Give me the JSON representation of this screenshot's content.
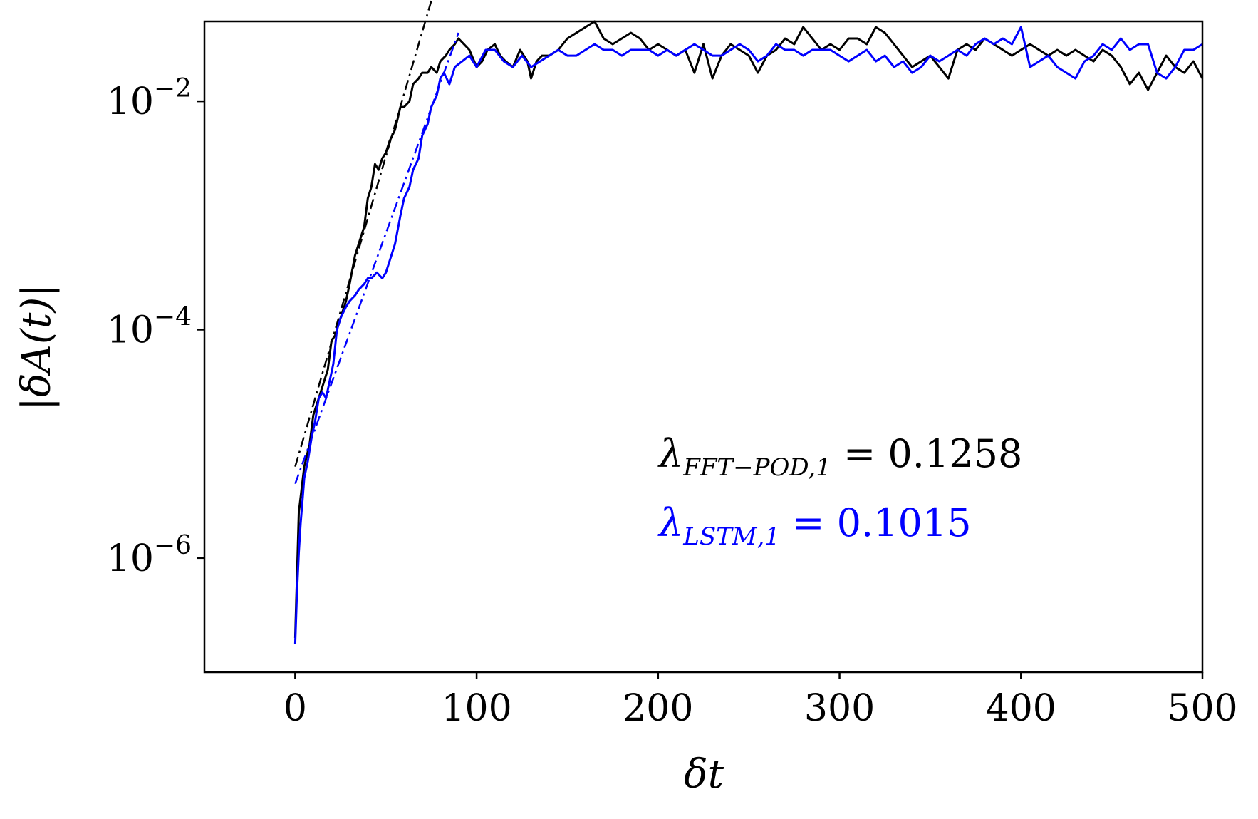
{
  "chart_data": {
    "type": "line",
    "xlabel": "δt",
    "ylabel": "|δA(t)|",
    "xlim": [
      -50,
      500
    ],
    "ylim_log10": [
      -7.0,
      -1.3
    ],
    "yscale": "log",
    "grid": false,
    "xticks": [
      0,
      100,
      200,
      300,
      400,
      500
    ],
    "xtick_labels": [
      "0",
      "100",
      "200",
      "300",
      "400",
      "500"
    ],
    "yticks_log10": [
      -6,
      -4,
      -2
    ],
    "ytick_labels": [
      {
        "base": "10",
        "exp": "−6"
      },
      {
        "base": "10",
        "exp": "−4"
      },
      {
        "base": "10",
        "exp": "−2"
      }
    ],
    "annotations": [
      {
        "sym": "λ",
        "sub": "FFT−POD,1",
        "text": " = 0.1258",
        "color": "#000000"
      },
      {
        "sym": "λ",
        "sub": "LSTM,1",
        "text": " = 0.1015",
        "color": "#0000ff"
      }
    ],
    "series": [
      {
        "color": "#000000",
        "style": "solid",
        "x": [
          0,
          2,
          5,
          8,
          10,
          13,
          15,
          18,
          20,
          22,
          25,
          28,
          30,
          33,
          35,
          38,
          40,
          42,
          44,
          46,
          48,
          50,
          52,
          55,
          58,
          60,
          63,
          65,
          68,
          70,
          73,
          75,
          78,
          80,
          83,
          85,
          88,
          90,
          93,
          96,
          100,
          103,
          106,
          110,
          113,
          116,
          120,
          124,
          128,
          130,
          133,
          136,
          140,
          145,
          150,
          155,
          160,
          165,
          170,
          175,
          180,
          185,
          190,
          195,
          200,
          205,
          210,
          215,
          220,
          225,
          230,
          235,
          240,
          245,
          250,
          255,
          260,
          265,
          270,
          275,
          280,
          285,
          290,
          295,
          300,
          305,
          310,
          315,
          320,
          325,
          330,
          335,
          340,
          345,
          350,
          355,
          360,
          365,
          370,
          375,
          380,
          385,
          390,
          395,
          400,
          405,
          410,
          415,
          420,
          425,
          430,
          435,
          440,
          445,
          450,
          455,
          460,
          465,
          470,
          475,
          480,
          485,
          490,
          495,
          500
        ],
        "log10y": [
          -6.7,
          -5.6,
          -5.2,
          -5.0,
          -4.75,
          -4.6,
          -4.5,
          -4.35,
          -4.1,
          -4.05,
          -3.9,
          -3.75,
          -3.6,
          -3.35,
          -3.25,
          -3.1,
          -2.85,
          -2.75,
          -2.55,
          -2.6,
          -2.5,
          -2.45,
          -2.35,
          -2.25,
          -2.05,
          -2.05,
          -2.0,
          -1.85,
          -1.8,
          -1.75,
          -1.75,
          -1.7,
          -1.75,
          -1.65,
          -1.6,
          -1.55,
          -1.5,
          -1.45,
          -1.5,
          -1.55,
          -1.7,
          -1.65,
          -1.55,
          -1.5,
          -1.6,
          -1.65,
          -1.7,
          -1.55,
          -1.65,
          -1.8,
          -1.65,
          -1.6,
          -1.6,
          -1.55,
          -1.45,
          -1.4,
          -1.35,
          -1.3,
          -1.45,
          -1.5,
          -1.45,
          -1.4,
          -1.45,
          -1.55,
          -1.5,
          -1.55,
          -1.6,
          -1.55,
          -1.75,
          -1.5,
          -1.8,
          -1.6,
          -1.5,
          -1.55,
          -1.6,
          -1.75,
          -1.6,
          -1.55,
          -1.45,
          -1.5,
          -1.35,
          -1.45,
          -1.55,
          -1.5,
          -1.55,
          -1.45,
          -1.45,
          -1.5,
          -1.35,
          -1.4,
          -1.5,
          -1.6,
          -1.7,
          -1.65,
          -1.6,
          -1.7,
          -1.8,
          -1.55,
          -1.5,
          -1.55,
          -1.45,
          -1.5,
          -1.55,
          -1.6,
          -1.55,
          -1.5,
          -1.55,
          -1.6,
          -1.55,
          -1.6,
          -1.55,
          -1.6,
          -1.65,
          -1.55,
          -1.6,
          -1.7,
          -1.85,
          -1.75,
          -1.9,
          -1.75,
          -1.6,
          -1.7,
          -1.75,
          -1.65,
          -1.8
        ]
      },
      {
        "color": "#0000ff",
        "style": "solid",
        "x": [
          0,
          1,
          2,
          3,
          4,
          5,
          7,
          9,
          11,
          13,
          15,
          17,
          19,
          21,
          23,
          25,
          28,
          30,
          33,
          35,
          38,
          40,
          42,
          45,
          48,
          50,
          53,
          55,
          58,
          60,
          63,
          65,
          68,
          70,
          73,
          75,
          78,
          80,
          82,
          85,
          88,
          92,
          96,
          100,
          105,
          110,
          115,
          120,
          125,
          130,
          135,
          140,
          145,
          150,
          155,
          160,
          165,
          170,
          175,
          180,
          185,
          190,
          195,
          200,
          205,
          210,
          215,
          220,
          225,
          230,
          235,
          240,
          245,
          250,
          255,
          260,
          265,
          270,
          275,
          280,
          285,
          290,
          295,
          300,
          305,
          310,
          315,
          320,
          325,
          330,
          335,
          340,
          345,
          350,
          355,
          360,
          365,
          370,
          375,
          380,
          385,
          390,
          395,
          400,
          405,
          410,
          415,
          420,
          425,
          430,
          435,
          440,
          445,
          450,
          455,
          460,
          465,
          470,
          475,
          480,
          485,
          490,
          495,
          500
        ],
        "log10y": [
          -6.75,
          -6.3,
          -5.95,
          -5.7,
          -5.5,
          -5.3,
          -5.15,
          -4.95,
          -4.8,
          -4.6,
          -4.55,
          -4.6,
          -4.45,
          -4.3,
          -4.0,
          -3.9,
          -3.8,
          -3.75,
          -3.7,
          -3.65,
          -3.6,
          -3.55,
          -3.55,
          -3.5,
          -3.55,
          -3.5,
          -3.35,
          -3.25,
          -3.0,
          -2.85,
          -2.75,
          -2.6,
          -2.5,
          -2.3,
          -2.2,
          -2.05,
          -1.95,
          -1.8,
          -1.75,
          -1.85,
          -1.7,
          -1.65,
          -1.6,
          -1.7,
          -1.55,
          -1.55,
          -1.65,
          -1.7,
          -1.6,
          -1.7,
          -1.65,
          -1.6,
          -1.55,
          -1.6,
          -1.6,
          -1.55,
          -1.5,
          -1.55,
          -1.55,
          -1.6,
          -1.55,
          -1.55,
          -1.55,
          -1.6,
          -1.55,
          -1.6,
          -1.55,
          -1.5,
          -1.55,
          -1.6,
          -1.6,
          -1.55,
          -1.5,
          -1.55,
          -1.65,
          -1.6,
          -1.5,
          -1.55,
          -1.55,
          -1.6,
          -1.55,
          -1.55,
          -1.55,
          -1.6,
          -1.65,
          -1.6,
          -1.55,
          -1.65,
          -1.6,
          -1.7,
          -1.65,
          -1.75,
          -1.7,
          -1.6,
          -1.65,
          -1.6,
          -1.55,
          -1.6,
          -1.5,
          -1.45,
          -1.5,
          -1.45,
          -1.5,
          -1.35,
          -1.7,
          -1.65,
          -1.6,
          -1.7,
          -1.75,
          -1.8,
          -1.65,
          -1.6,
          -1.5,
          -1.55,
          -1.45,
          -1.55,
          -1.5,
          -1.5,
          -1.75,
          -1.8,
          -1.7,
          -1.55,
          -1.55,
          -1.5
        ]
      },
      {
        "color": "#000000",
        "style": "dashdot",
        "x": [
          0,
          80
        ],
        "log10y": [
          -5.2,
          -0.85
        ]
      },
      {
        "color": "#0000ff",
        "style": "dashdot",
        "x": [
          0,
          90
        ],
        "log10y": [
          -5.35,
          -1.4
        ]
      }
    ]
  }
}
